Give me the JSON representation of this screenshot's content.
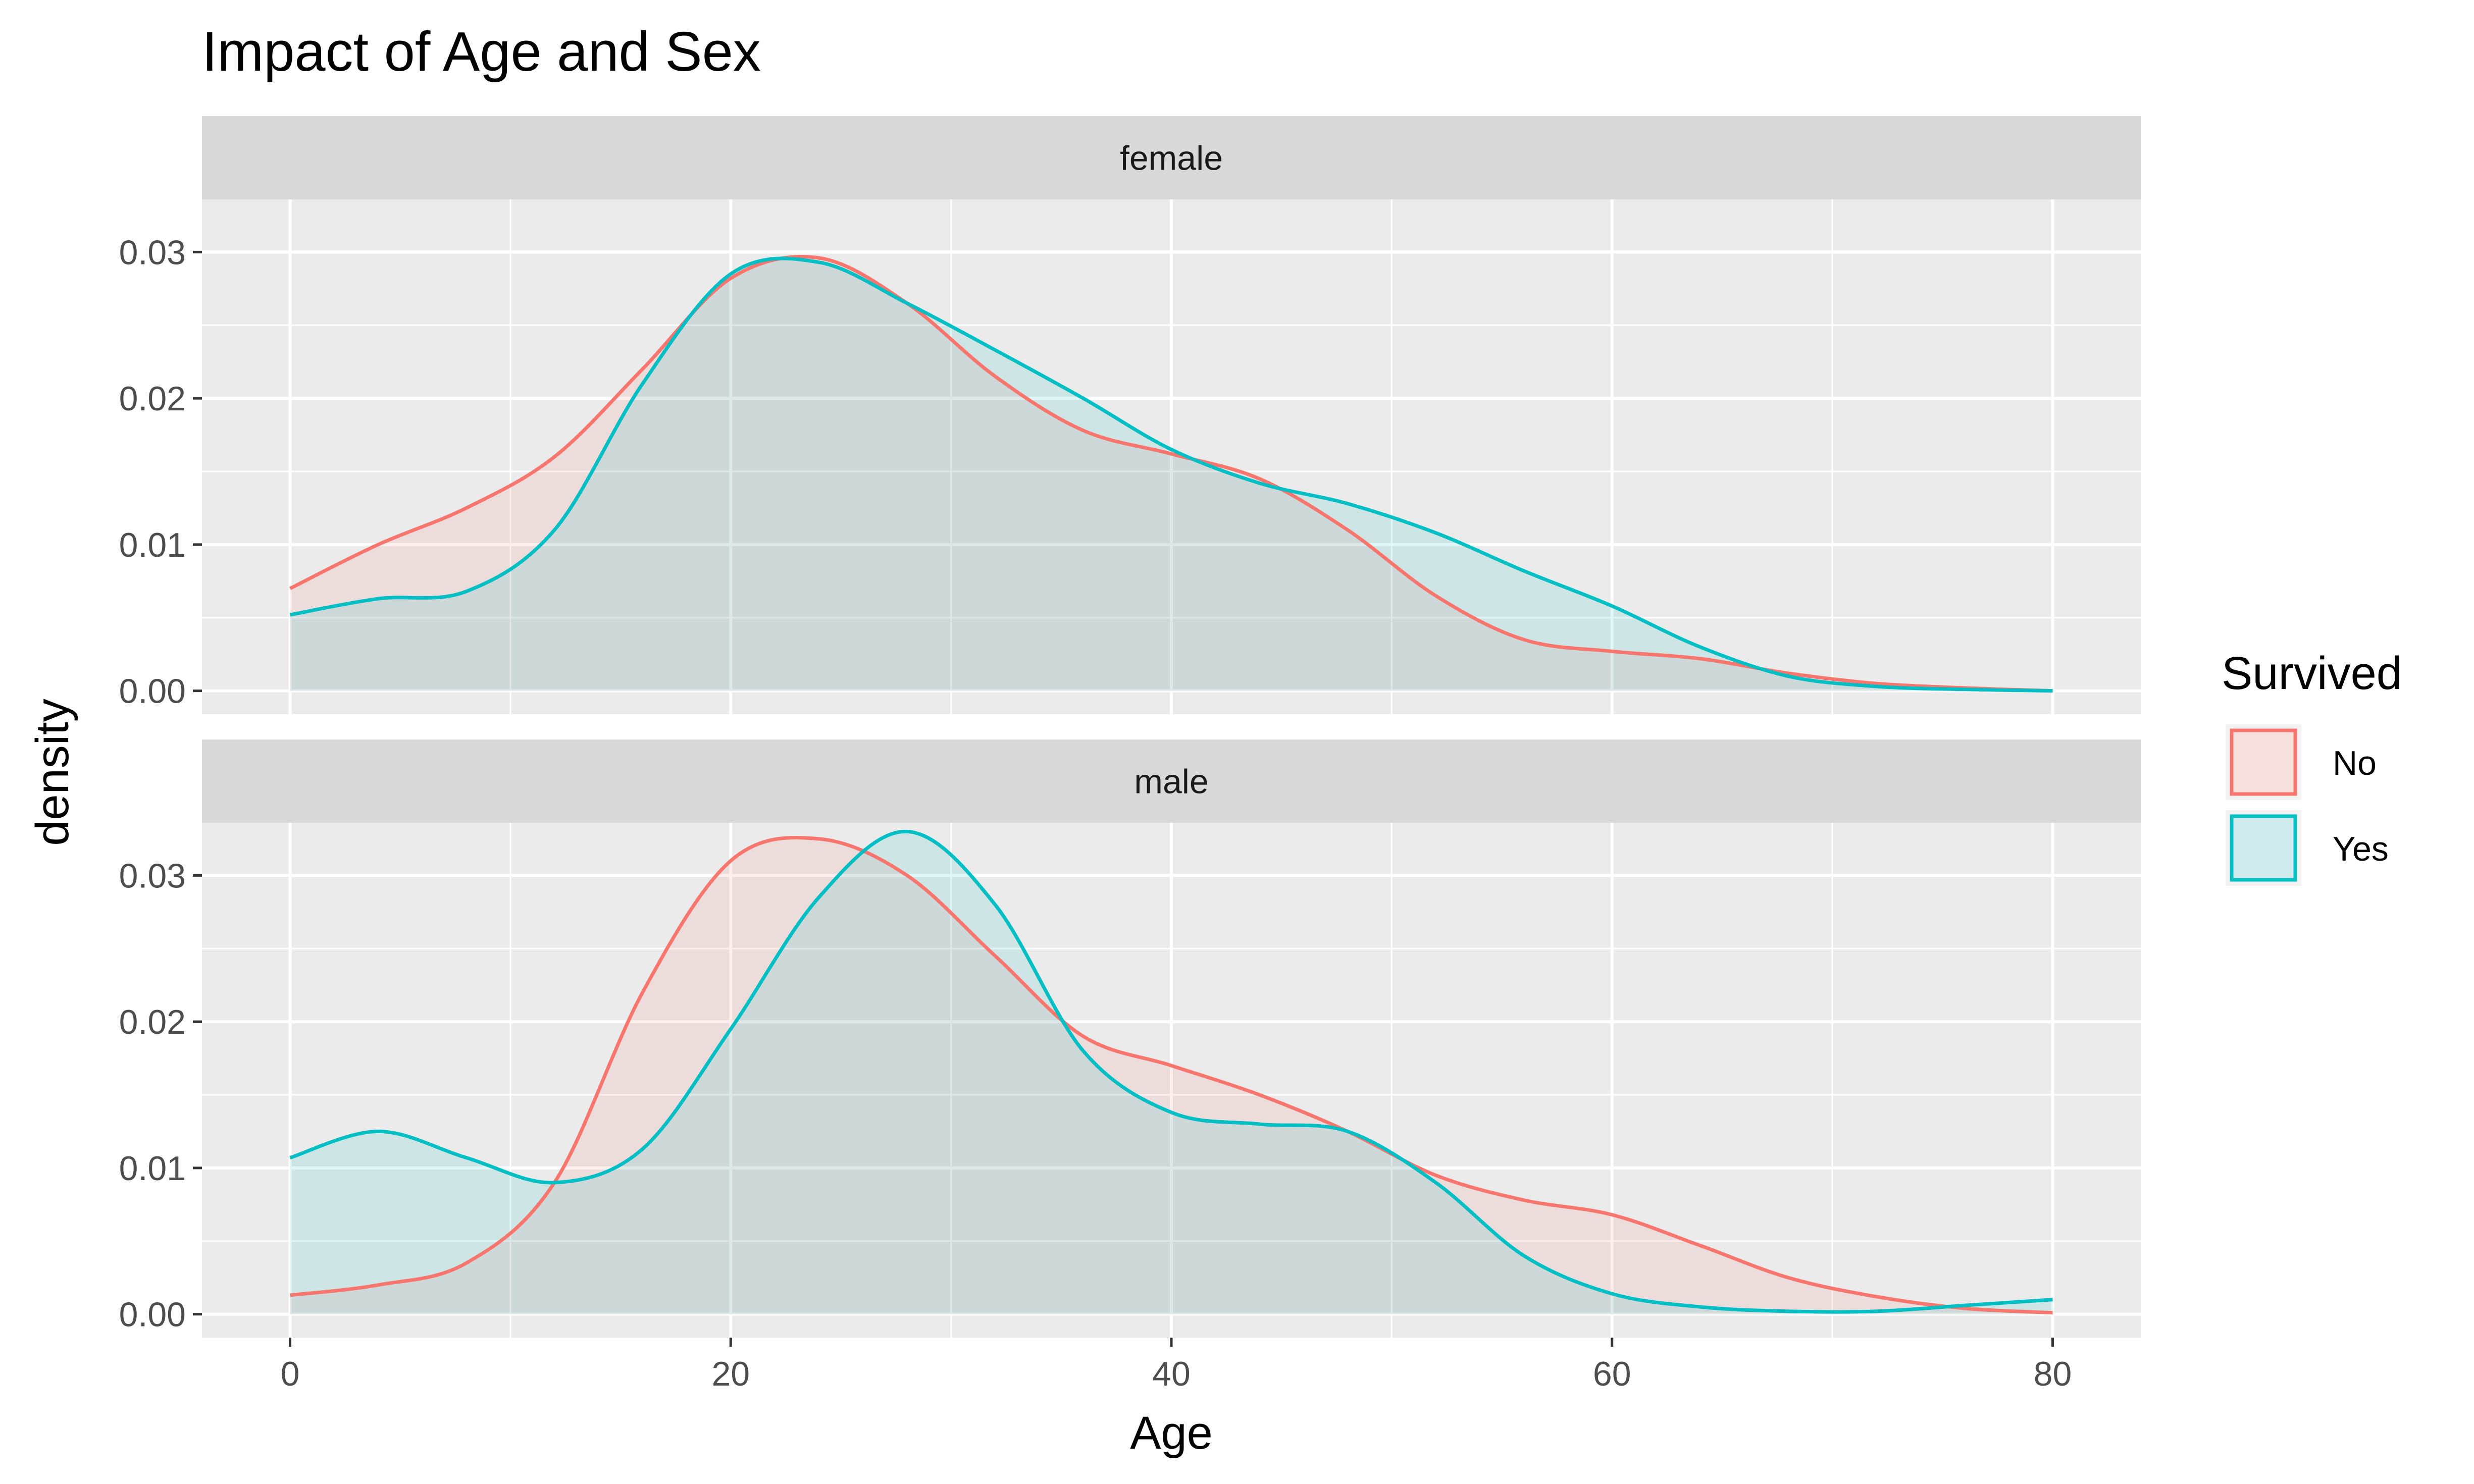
{
  "chart_data": {
    "type": "area",
    "title": "Impact of Age and Sex",
    "xlabel": "Age",
    "ylabel": "density",
    "xlim": [
      -4,
      84
    ],
    "ylim": [
      -0.0016,
      0.0336
    ],
    "x_ticks": [
      0,
      20,
      40,
      60,
      80
    ],
    "y_ticks": [
      0.0,
      0.01,
      0.02,
      0.03
    ],
    "y_tick_labels": [
      "0.00",
      "0.01",
      "0.02",
      "0.03"
    ],
    "grid": true,
    "legend_position": "right",
    "legend": {
      "title": "Survived",
      "entries": [
        {
          "label": "No",
          "color": "#F8766D",
          "fill": "#F8E1DF"
        },
        {
          "label": "Yes",
          "color": "#00BFC4",
          "fill": "#D0EBED"
        }
      ]
    },
    "panels": [
      {
        "label": "female",
        "series": [
          {
            "name": "No",
            "x": [
              0,
              4,
              8,
              12,
              16,
              20,
              24,
              28,
              32,
              36,
              40,
              44,
              48,
              52,
              56,
              60,
              64,
              68,
              72,
              76,
              80
            ],
            "y": [
              0.007,
              0.01,
              0.0125,
              0.016,
              0.022,
              0.0282,
              0.0296,
              0.0265,
              0.0215,
              0.0178,
              0.0162,
              0.0145,
              0.011,
              0.0065,
              0.0035,
              0.0027,
              0.0022,
              0.0012,
              0.0005,
              0.0002,
              0.0
            ]
          },
          {
            "name": "Yes",
            "x": [
              0,
              4,
              8,
              12,
              16,
              20,
              24,
              28,
              32,
              36,
              40,
              44,
              48,
              52,
              56,
              60,
              64,
              68,
              72,
              76,
              80
            ],
            "y": [
              0.0052,
              0.0063,
              0.0068,
              0.011,
              0.021,
              0.0285,
              0.0293,
              0.0265,
              0.0233,
              0.02,
              0.0165,
              0.0142,
              0.0128,
              0.0108,
              0.0082,
              0.0058,
              0.003,
              0.001,
              0.0003,
              0.0001,
              0.0
            ]
          }
        ]
      },
      {
        "label": "male",
        "series": [
          {
            "name": "No",
            "x": [
              0,
              4,
              8,
              12,
              16,
              20,
              24,
              28,
              32,
              36,
              40,
              44,
              48,
              52,
              56,
              60,
              64,
              68,
              72,
              76,
              80
            ],
            "y": [
              0.0013,
              0.002,
              0.0035,
              0.009,
              0.022,
              0.031,
              0.0325,
              0.03,
              0.0245,
              0.019,
              0.017,
              0.015,
              0.0125,
              0.0095,
              0.0078,
              0.0068,
              0.0047,
              0.0025,
              0.0012,
              0.0004,
              0.0001
            ]
          },
          {
            "name": "Yes",
            "x": [
              0,
              4,
              8,
              12,
              16,
              20,
              24,
              28,
              32,
              36,
              40,
              44,
              48,
              52,
              56,
              60,
              64,
              68,
              72,
              76,
              80
            ],
            "y": [
              0.0107,
              0.0125,
              0.0107,
              0.009,
              0.0113,
              0.0195,
              0.0285,
              0.033,
              0.028,
              0.018,
              0.0138,
              0.013,
              0.0125,
              0.009,
              0.004,
              0.0014,
              0.0005,
              0.0002,
              0.0002,
              0.0006,
              0.001
            ]
          }
        ]
      }
    ]
  }
}
